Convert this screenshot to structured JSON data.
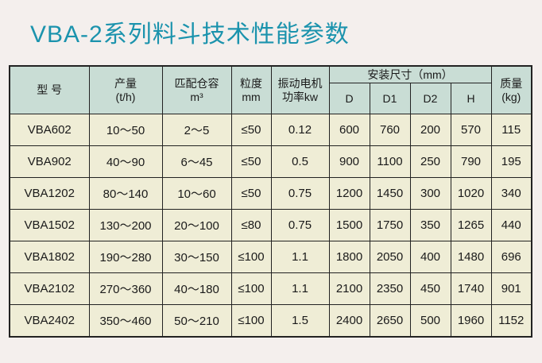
{
  "title": "VBA-2系列料斗技术性能参数",
  "colors": {
    "title": "#1b93ad",
    "header_bg": "#c9ddd5",
    "body_bg": "#efedd6"
  },
  "headers": {
    "model": "型 号",
    "output": "产量",
    "output_unit": "(t/h)",
    "bin": "匹配仓容",
    "bin_unit": "m³",
    "granularity": "粒度",
    "granularity_unit": "mm",
    "motor": "振动电机",
    "motor_unit": "功率kw",
    "install": "安装尺寸（mm）",
    "d": "D",
    "d1": "D1",
    "d2": "D2",
    "h": "H",
    "mass": "质量",
    "mass_unit": "(kg)"
  },
  "rows": [
    [
      "VBA602",
      "10～50",
      "2～5",
      "≤50",
      "0.12",
      "600",
      "760",
      "200",
      "570",
      "115"
    ],
    [
      "VBA902",
      "40～90",
      "6～45",
      "≤50",
      "0.5",
      "900",
      "1100",
      "250",
      "790",
      "195"
    ],
    [
      "VBA1202",
      "80～140",
      "10～60",
      "≤50",
      "0.75",
      "1200",
      "1450",
      "300",
      "1020",
      "340"
    ],
    [
      "VBA1502",
      "130～200",
      "20～100",
      "≤80",
      "0.75",
      "1500",
      "1750",
      "350",
      "1265",
      "440"
    ],
    [
      "VBA1802",
      "190～280",
      "30～150",
      "≤100",
      "1.1",
      "1800",
      "2050",
      "400",
      "1480",
      "696"
    ],
    [
      "VBA2102",
      "270～360",
      "40～180",
      "≤100",
      "1.1",
      "2100",
      "2350",
      "450",
      "1740",
      "901"
    ],
    [
      "VBA2402",
      "350～460",
      "50～210",
      "≤100",
      "1.5",
      "2400",
      "2650",
      "500",
      "1960",
      "1152"
    ]
  ]
}
